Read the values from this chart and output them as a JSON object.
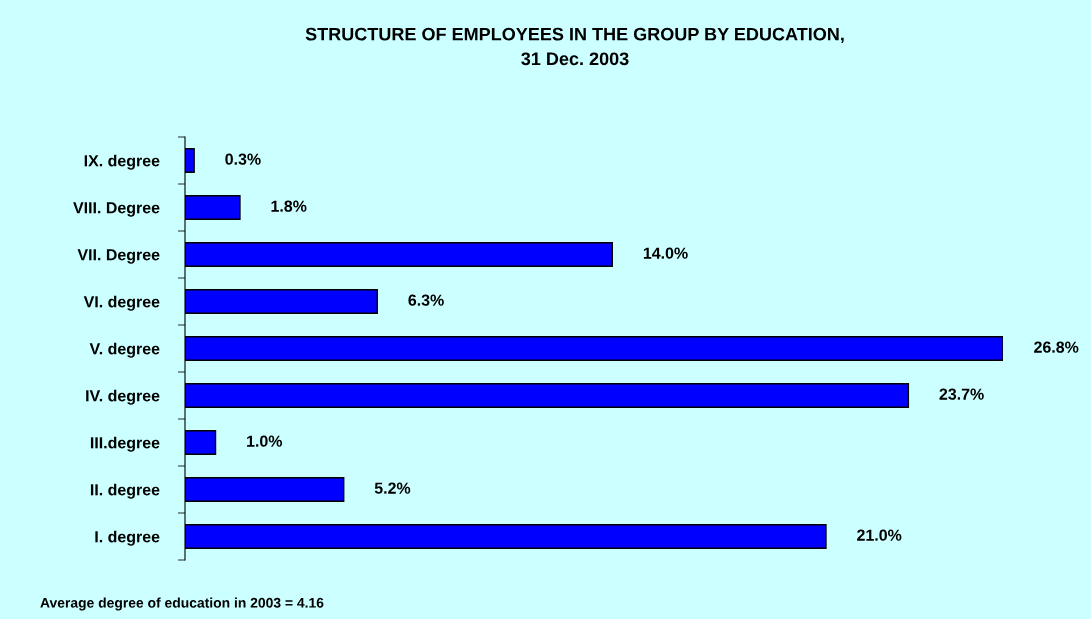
{
  "chart_data": {
    "type": "bar",
    "orientation": "horizontal",
    "title": "STRUCTURE OF EMPLOYEES IN THE GROUP BY EDUCATION,\n31 Dec. 2003",
    "categories": [
      "IX. degree",
      "VIII. Degree",
      "VII. Degree",
      "VI. degree",
      "V. degree",
      "IV. degree",
      "III.degree",
      "II. degree",
      "I. degree"
    ],
    "values": [
      0.3,
      1.8,
      14.0,
      6.3,
      26.8,
      23.7,
      1.0,
      5.2,
      21.0
    ],
    "value_labels": [
      "0.3%",
      "1.8%",
      "14.0%",
      "6.3%",
      "26.8%",
      "23.7%",
      "1.0%",
      "5.2%",
      "21.0%"
    ],
    "color": "#0000ff",
    "annotations": [
      "Average degree of education in 2003 = 4.16"
    ],
    "grid": false,
    "legend": false
  }
}
